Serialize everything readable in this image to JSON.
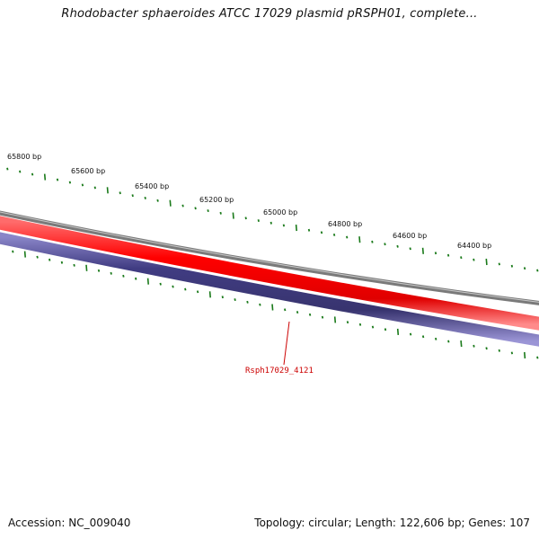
{
  "title": "Rhodobacter sphaeroides ATCC 17029 plasmid pRSPH01, complete...",
  "footer": {
    "accession": "Accession: NC_009040",
    "summary": "Topology: circular; Length: 122,606 bp; Genes: 107"
  },
  "ruler": {
    "labels": [
      "65800 bp",
      "65600 bp",
      "65400 bp",
      "65200 bp",
      "65000 bp",
      "64800 bp",
      "64600 bp",
      "64400 bp"
    ],
    "positions_bp": [
      65800,
      65600,
      65400,
      65200,
      65000,
      64800,
      64600,
      64400
    ]
  },
  "genes": [
    {
      "label": "Rsph17029_4121",
      "color": "#cc0000"
    }
  ],
  "colors": {
    "backbone": "#808080",
    "forward_track": "#ff0000",
    "reverse_track": "#3d3a7a",
    "ticks": "#1a7a1a",
    "gene_label": "#cc0000"
  }
}
